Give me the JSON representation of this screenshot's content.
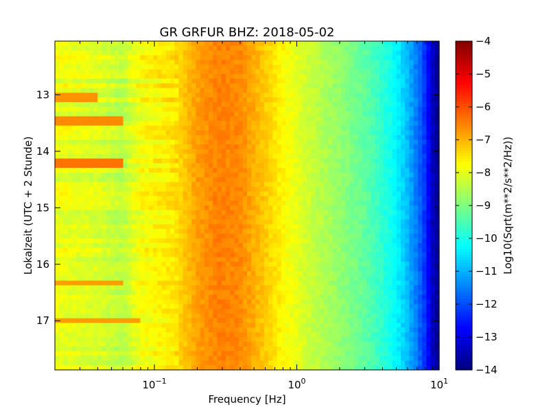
{
  "chart_data": {
    "type": "heatmap",
    "title": "GR GRFUR BHZ: 2018-05-02",
    "xlabel": "Frequency [Hz]",
    "ylabel": "Lokalzeit (UTC + 2 Stunde)",
    "xscale": "log",
    "xlim": [
      0.02,
      10
    ],
    "ylim": [
      17.87,
      12.05
    ],
    "x_ticks": [
      {
        "base": "10",
        "exp": "−1",
        "value": 0.1
      },
      {
        "base": "10",
        "exp": "0",
        "value": 1
      },
      {
        "base": "10",
        "exp": "1",
        "value": 10
      }
    ],
    "y_ticks": [
      "13",
      "14",
      "15",
      "16",
      "17"
    ],
    "colorbar": {
      "label": "Log10(Sqrt(m**2/s**2/Hz))",
      "range": [
        -14,
        -4
      ],
      "ticks": [
        "−4",
        "−5",
        "−6",
        "−7",
        "−8",
        "−9",
        "−10",
        "−11",
        "−12",
        "−13",
        "−14"
      ],
      "colormap": "jet"
    },
    "frequency_profile": {
      "frequency_hz": [
        0.02,
        0.04,
        0.06,
        0.08,
        0.1,
        0.14,
        0.2,
        0.28,
        0.4,
        0.55,
        0.8,
        1.0,
        1.5,
        2.0,
        3.0,
        4.0,
        5.0,
        6.0,
        7.0,
        8.0,
        9.0,
        10.0
      ],
      "log10_amplitude": [
        -7.9,
        -8.1,
        -8.4,
        -7.8,
        -7.7,
        -7.5,
        -6.8,
        -6.5,
        -6.6,
        -7.1,
        -7.7,
        -8.0,
        -8.5,
        -8.8,
        -9.3,
        -9.8,
        -10.3,
        -10.9,
        -11.6,
        -12.3,
        -13.4,
        -13.9
      ]
    },
    "events": [
      {
        "time": 13.03,
        "max_frequency_hz": 0.04,
        "log10_amplitude": -6.7
      },
      {
        "time": 13.48,
        "max_frequency_hz": 0.06,
        "log10_amplitude": -6.6
      },
      {
        "time": 14.2,
        "max_frequency_hz": 0.06,
        "log10_amplitude": -6.4
      },
      {
        "time": 16.33,
        "max_frequency_hz": 0.06,
        "log10_amplitude": -6.8
      },
      {
        "time": 17.0,
        "max_frequency_hz": 0.08,
        "log10_amplitude": -6.8
      }
    ]
  }
}
